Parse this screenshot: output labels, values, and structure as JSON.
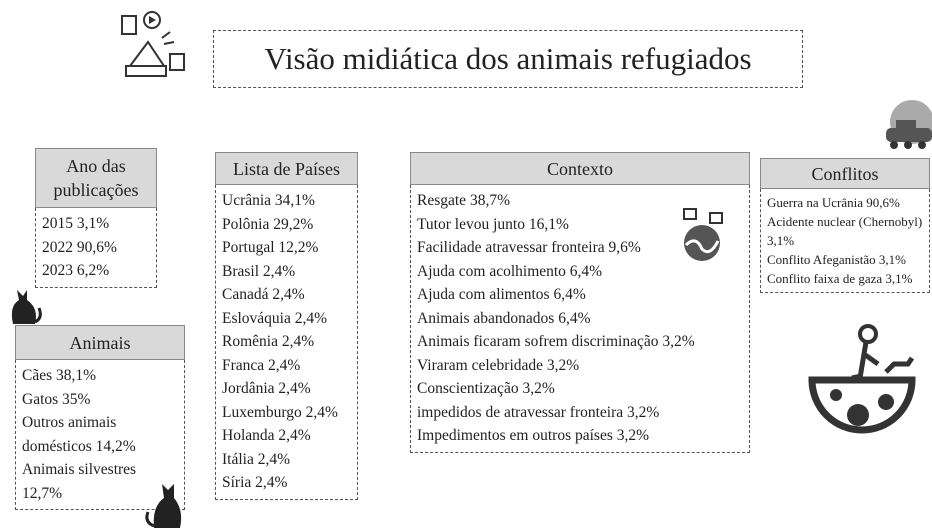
{
  "header": {
    "title": "Visão midiática dos animais refugiados"
  },
  "sections": [
    {
      "title": "Ano das publicações",
      "items": [
        "2015 3,1%",
        "2022 90,6%",
        "2023 6,2%"
      ]
    },
    {
      "title": "Animais",
      "items": [
        "Cães 38,1%",
        "Gatos 35%",
        "Outros animais domésticos 14,2%",
        "Animais silvestres 12,7%"
      ]
    },
    {
      "title": "Lista de Países",
      "items": [
        "Ucrânia 34,1%",
        "Polônia 29,2%",
        "Portugal 12,2%",
        "Brasil 2,4%",
        "Canadá 2,4%",
        "Eslováquia 2,4%",
        "Romênia 2,4%",
        "Franca 2,4%",
        "Jordânia 2,4%",
        "Luxemburgo 2,4%",
        "Holanda 2,4%",
        "Itália 2,4%",
        "Síria 2,4%"
      ]
    },
    {
      "title": "Contexto",
      "items": [
        "Resgate 38,7%",
        "Tutor levou junto 16,1%",
        "Facilidade atravessar fronteira 9,6%",
        "Ajuda com acolhimento 6,4%",
        "Ajuda com alimentos 6,4%",
        "Animais abandonados 6,4%",
        "Animais ficaram sofrem discriminação 3,2%",
        "Viraram celebridade 3,2%",
        "Conscientização 3,2%",
        "impedidos de atravessar fronteira 3,2%",
        "Impedimentos em outros países 3,2%"
      ]
    },
    {
      "title": "Conflitos",
      "items": [
        "Guerra na Ucrânia 90,6%",
        "Acidente nuclear (Chernobyl) 3,1%",
        "Conflito Afeganistão 3,1%",
        "Conflito faixa de gaza 3,1%"
      ]
    }
  ]
}
